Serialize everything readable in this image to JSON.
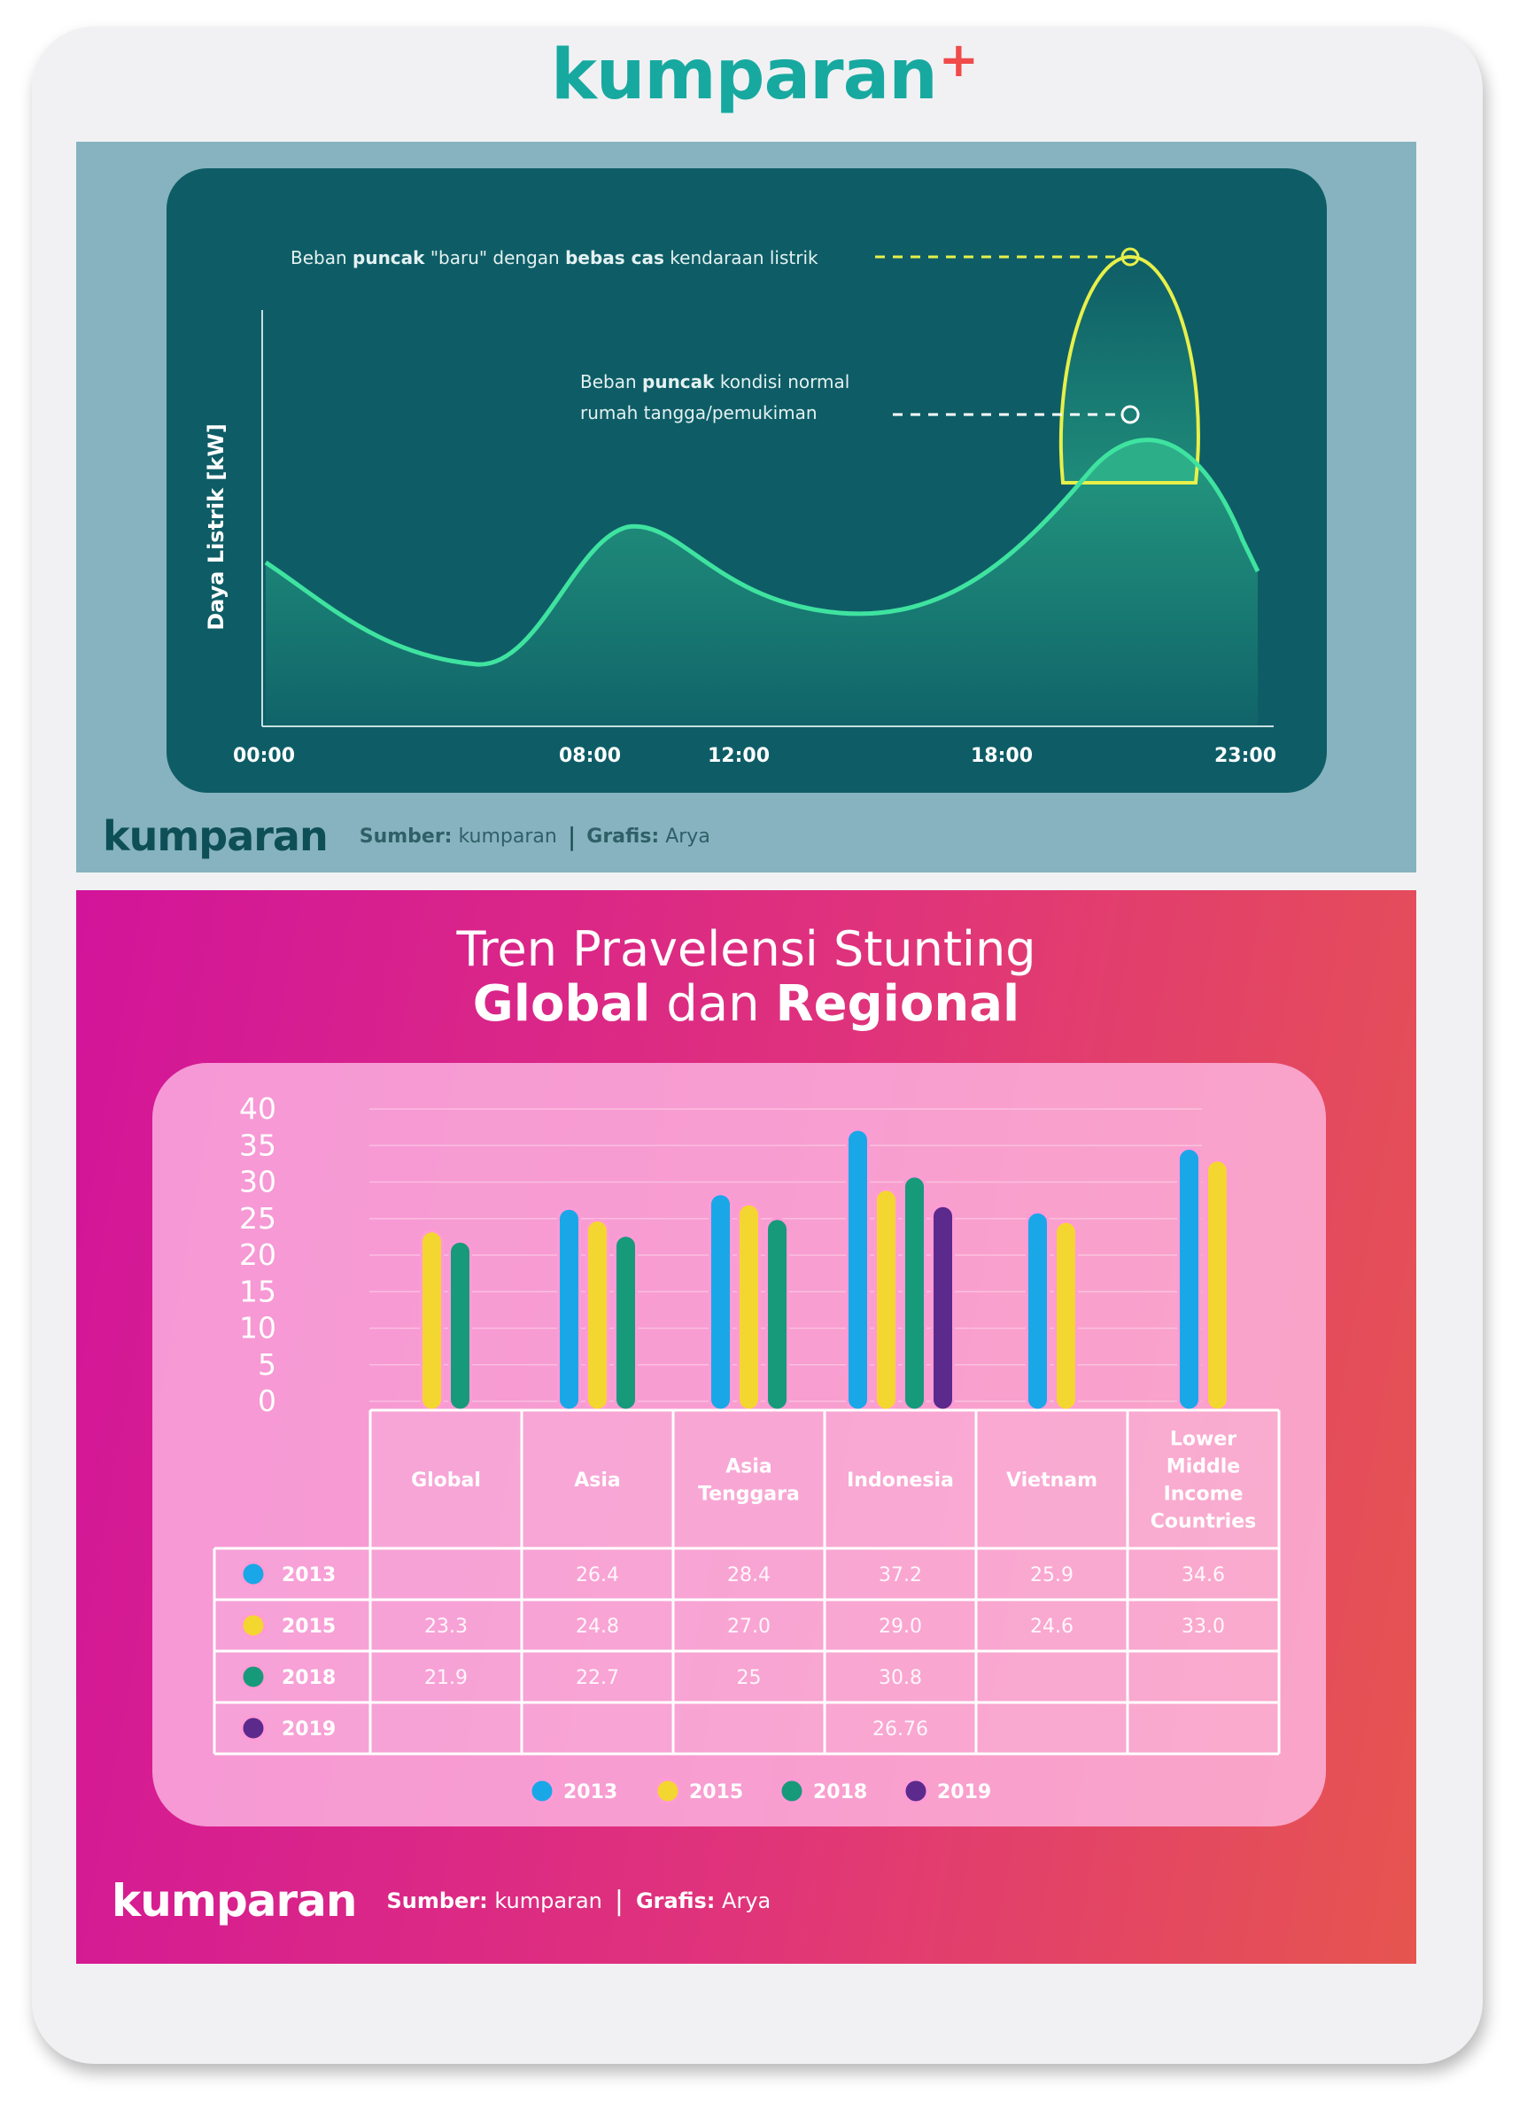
{
  "brand": {
    "top_logo": "kumparan",
    "top_logo_plus": "+"
  },
  "panel1": {
    "chart_data": {
      "type": "line",
      "ylabel": "Daya Listrik [kW]",
      "x_ticks": [
        "00:00",
        "08:00",
        "12:00",
        "18:00",
        "23:00"
      ],
      "annotations": [
        {
          "pre": "Beban ",
          "bold1": "puncak",
          "mid": " \"baru\" dengan ",
          "bold2": "bebas cas",
          "post": " kendaraan listrik"
        },
        {
          "line1_pre": "Beban ",
          "line1_bold": "puncak",
          "line1_post": " kondisi normal",
          "line2": "rumah tangga/pemukiman"
        }
      ],
      "colors": {
        "curve": "#3fe3a0",
        "peak_outline": "#e7f04a",
        "background": "#0e5d66"
      }
    },
    "footer": {
      "logo": "kumparan",
      "src_label": "Sumber:",
      "src_value": " kumparan",
      "sep": "|",
      "graf_label": "Grafis:",
      "graf_value": " Arya"
    }
  },
  "panel2": {
    "title_line1": "Tren Pravelensi Stunting",
    "title_line2": {
      "b1": "Global",
      "mid": " dan ",
      "b2": "Regional"
    },
    "chart_data": {
      "type": "bar",
      "y_ticks": [
        "40",
        "35",
        "30",
        "25",
        "20",
        "15",
        "10",
        "5",
        "0"
      ],
      "ylim": [
        0,
        40
      ],
      "categories": [
        [
          "Global"
        ],
        [
          "Asia"
        ],
        [
          "Asia",
          "Tenggara"
        ],
        [
          "Indonesia"
        ],
        [
          "Vietnam"
        ],
        [
          "Lower",
          "Middle",
          "Income",
          "Countries"
        ]
      ],
      "series": [
        {
          "name": "2013",
          "color": "#1aa7e8",
          "values": [
            null,
            26.4,
            28.4,
            37.2,
            25.9,
            34.6
          ],
          "labels": [
            "",
            "26.4",
            "28.4",
            "37.2",
            "25.9",
            "34.6"
          ]
        },
        {
          "name": "2015",
          "color": "#f4d630",
          "values": [
            23.3,
            24.8,
            27.0,
            29.0,
            24.6,
            33.0
          ],
          "labels": [
            "23.3",
            "24.8",
            "27.0",
            "29.0",
            "24.6",
            "33.0"
          ]
        },
        {
          "name": "2018",
          "color": "#179a7a",
          "values": [
            21.9,
            22.7,
            25,
            30.8,
            null,
            null
          ],
          "labels": [
            "21.9",
            "22.7",
            "25",
            "30.8",
            "",
            ""
          ]
        },
        {
          "name": "2019",
          "color": "#5b2a8c",
          "values": [
            null,
            null,
            null,
            26.76,
            null,
            null
          ],
          "labels": [
            "",
            "",
            "",
            "26.76",
            "",
            ""
          ]
        }
      ]
    },
    "footer": {
      "logo": "kumparan",
      "src_label": "Sumber:",
      "src_value": " kumparan",
      "sep": "|",
      "graf_label": "Grafis:",
      "graf_value": " Arya"
    }
  }
}
